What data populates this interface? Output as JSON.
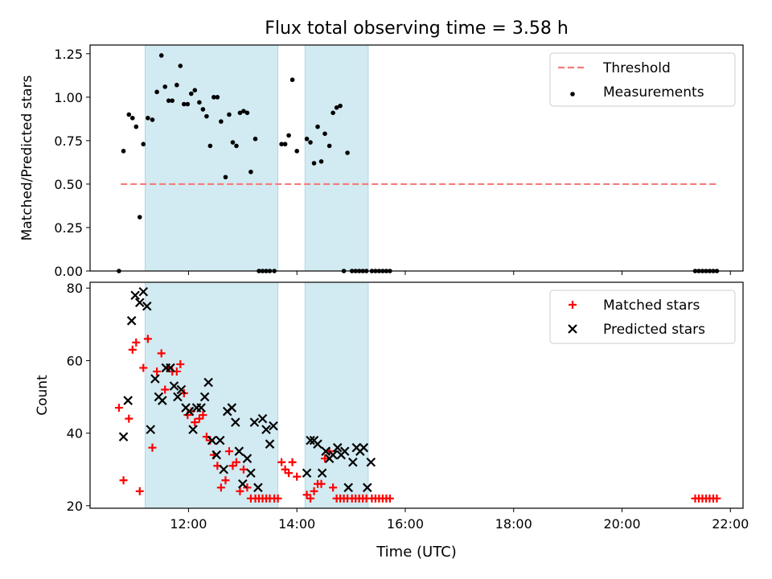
{
  "chart_data": {
    "title": "Flux total observing time = 3.58 h",
    "colors": {
      "threshold": "#f77b7b",
      "measurement": "#000000",
      "matched": "#ff0000",
      "predicted": "#000000",
      "span": "#add8e6"
    },
    "shaded_spans": [
      [
        "11:12",
        "13:39"
      ],
      [
        "14:09",
        "15:19"
      ]
    ],
    "x_axis": {
      "label": "Time (UTC)",
      "lim": [
        "10:11",
        "22:14"
      ],
      "ticks": [
        "12:00",
        "14:00",
        "16:00",
        "18:00",
        "20:00",
        "22:00"
      ]
    },
    "panels": [
      {
        "type": "scatter",
        "ylabel": "Matched/Predicted stars",
        "ylim": [
          0,
          1.3
        ],
        "yticks": [
          "0.00",
          "0.25",
          "0.50",
          "0.75",
          "1.00",
          "1.25"
        ],
        "legend_position": "top-right",
        "series": [
          {
            "name": "Threshold",
            "style": "dashed-line",
            "x": [
              "10:45",
              "21:45"
            ],
            "y": [
              0.5,
              0.5
            ]
          },
          {
            "name": "Measurements",
            "style": "dot",
            "x": [
              "10:43",
              "10:48",
              "10:54",
              "10:58",
              "11:02",
              "11:06",
              "11:10",
              "11:15",
              "11:20",
              "11:25",
              "11:30",
              "11:34",
              "11:38",
              "11:42",
              "11:47",
              "11:51",
              "11:55",
              "11:59",
              "12:03",
              "12:07",
              "12:12",
              "12:16",
              "12:20",
              "12:24",
              "12:28",
              "12:32",
              "12:36",
              "12:41",
              "12:45",
              "12:49",
              "12:53",
              "12:57",
              "13:01",
              "13:05",
              "13:09",
              "13:14",
              "13:18",
              "13:22",
              "13:26",
              "13:30",
              "13:35",
              "13:43",
              "13:47",
              "13:51",
              "13:55",
              "14:00",
              "14:11",
              "14:15",
              "14:19",
              "14:23",
              "14:27",
              "14:31",
              "14:36",
              "14:40",
              "14:44",
              "14:48",
              "14:52",
              "14:56",
              "15:01",
              "15:05",
              "15:09",
              "15:13",
              "15:17",
              "15:23",
              "15:27",
              "15:31",
              "15:35",
              "15:39",
              "15:43",
              "21:21",
              "21:25",
              "21:29",
              "21:33",
              "21:37",
              "21:41",
              "21:45"
            ],
            "y": [
              0.0,
              0.69,
              0.9,
              0.88,
              0.83,
              0.31,
              0.73,
              0.88,
              0.87,
              1.03,
              1.24,
              1.06,
              0.98,
              0.98,
              1.07,
              1.18,
              0.96,
              0.96,
              1.02,
              1.04,
              0.97,
              0.93,
              0.89,
              0.72,
              1.0,
              1.0,
              0.86,
              0.54,
              0.9,
              0.74,
              0.72,
              0.91,
              0.92,
              0.91,
              0.57,
              0.76,
              0.0,
              0.0,
              0.0,
              0.0,
              0.0,
              0.73,
              0.73,
              0.78,
              1.1,
              0.69,
              0.76,
              0.74,
              0.62,
              0.83,
              0.63,
              0.79,
              0.72,
              0.91,
              0.94,
              0.95,
              0.0,
              0.68,
              0.0,
              0.0,
              0.0,
              0.0,
              0.0,
              0.0,
              0.0,
              0.0,
              0.0,
              0.0,
              0.0,
              0.0,
              0.0,
              0.0,
              0.0,
              0.0,
              0.0,
              0.0
            ]
          }
        ]
      },
      {
        "type": "scatter",
        "ylabel": "Count",
        "ylim": [
          19.3,
          81.6
        ],
        "yticks": [
          "20",
          "40",
          "60",
          "80"
        ],
        "legend_position": "top-right",
        "series": [
          {
            "name": "Matched stars",
            "style": "plus",
            "x": [
              "10:43",
              "10:48",
              "10:54",
              "10:58",
              "11:02",
              "11:06",
              "11:10",
              "11:15",
              "11:20",
              "11:25",
              "11:30",
              "11:34",
              "11:38",
              "11:42",
              "11:47",
              "11:51",
              "11:55",
              "11:59",
              "12:03",
              "12:07",
              "12:12",
              "12:16",
              "12:20",
              "12:24",
              "12:28",
              "12:32",
              "12:36",
              "12:41",
              "12:45",
              "12:49",
              "12:53",
              "12:57",
              "13:01",
              "13:05",
              "13:09",
              "13:14",
              "13:18",
              "13:22",
              "13:26",
              "13:30",
              "13:35",
              "13:39",
              "13:43",
              "13:47",
              "13:51",
              "13:55",
              "14:00",
              "14:11",
              "14:15",
              "14:19",
              "14:23",
              "14:27",
              "14:31",
              "14:36",
              "14:40",
              "14:44",
              "14:48",
              "14:52",
              "14:56",
              "15:01",
              "15:05",
              "15:09",
              "15:13",
              "15:17",
              "15:23",
              "15:27",
              "15:31",
              "15:35",
              "15:39",
              "15:43",
              "21:21",
              "21:25",
              "21:29",
              "21:33",
              "21:37",
              "21:41",
              "21:45"
            ],
            "y": [
              47,
              27,
              44,
              63,
              65,
              24,
              58,
              66,
              36,
              57,
              62,
              52,
              58,
              57,
              57,
              59,
              51,
              45,
              46,
              43,
              44,
              45,
              39,
              38,
              34,
              31,
              25,
              27,
              35,
              31,
              32,
              24,
              30,
              25,
              22,
              22,
              22,
              22,
              22,
              22,
              22,
              22,
              32,
              30,
              29,
              32,
              28,
              23,
              22,
              24,
              26,
              26,
              33,
              35,
              25,
              22,
              22,
              22,
              22,
              22,
              22,
              22,
              22,
              22,
              22,
              22,
              22,
              22,
              22,
              22,
              22,
              22,
              22,
              22,
              22,
              22,
              22
            ]
          },
          {
            "name": "Predicted stars",
            "style": "x",
            "x": [
              "10:48",
              "10:53",
              "10:57",
              "11:01",
              "11:06",
              "11:10",
              "11:14",
              "11:18",
              "11:23",
              "11:27",
              "11:31",
              "11:35",
              "11:40",
              "11:44",
              "11:48",
              "11:52",
              "11:57",
              "12:01",
              "12:05",
              "12:09",
              "12:14",
              "12:18",
              "12:22",
              "12:26",
              "12:31",
              "12:35",
              "12:39",
              "12:43",
              "12:48",
              "12:52",
              "12:56",
              "13:00",
              "13:05",
              "13:09",
              "13:13",
              "13:17",
              "13:22",
              "13:26",
              "13:30",
              "13:34",
              "14:11",
              "14:15",
              "14:19",
              "14:23",
              "14:28",
              "14:32",
              "14:36",
              "14:40",
              "14:45",
              "14:49",
              "14:53",
              "14:57",
              "15:02",
              "15:06",
              "15:10",
              "15:14",
              "15:18",
              "15:22"
            ],
            "y": [
              39,
              49,
              71,
              78,
              76,
              79,
              75,
              41,
              55,
              50,
              49,
              58,
              58,
              53,
              50,
              52,
              47,
              46,
              41,
              47,
              47,
              50,
              54,
              38,
              34,
              38,
              30,
              46,
              47,
              43,
              35,
              26,
              33,
              29,
              43,
              25,
              44,
              41,
              37,
              42,
              29,
              38,
              38,
              37,
              29,
              35,
              33,
              34,
              36,
              34,
              35,
              25,
              32,
              36,
              35,
              36,
              25,
              32
            ]
          }
        ]
      }
    ]
  }
}
